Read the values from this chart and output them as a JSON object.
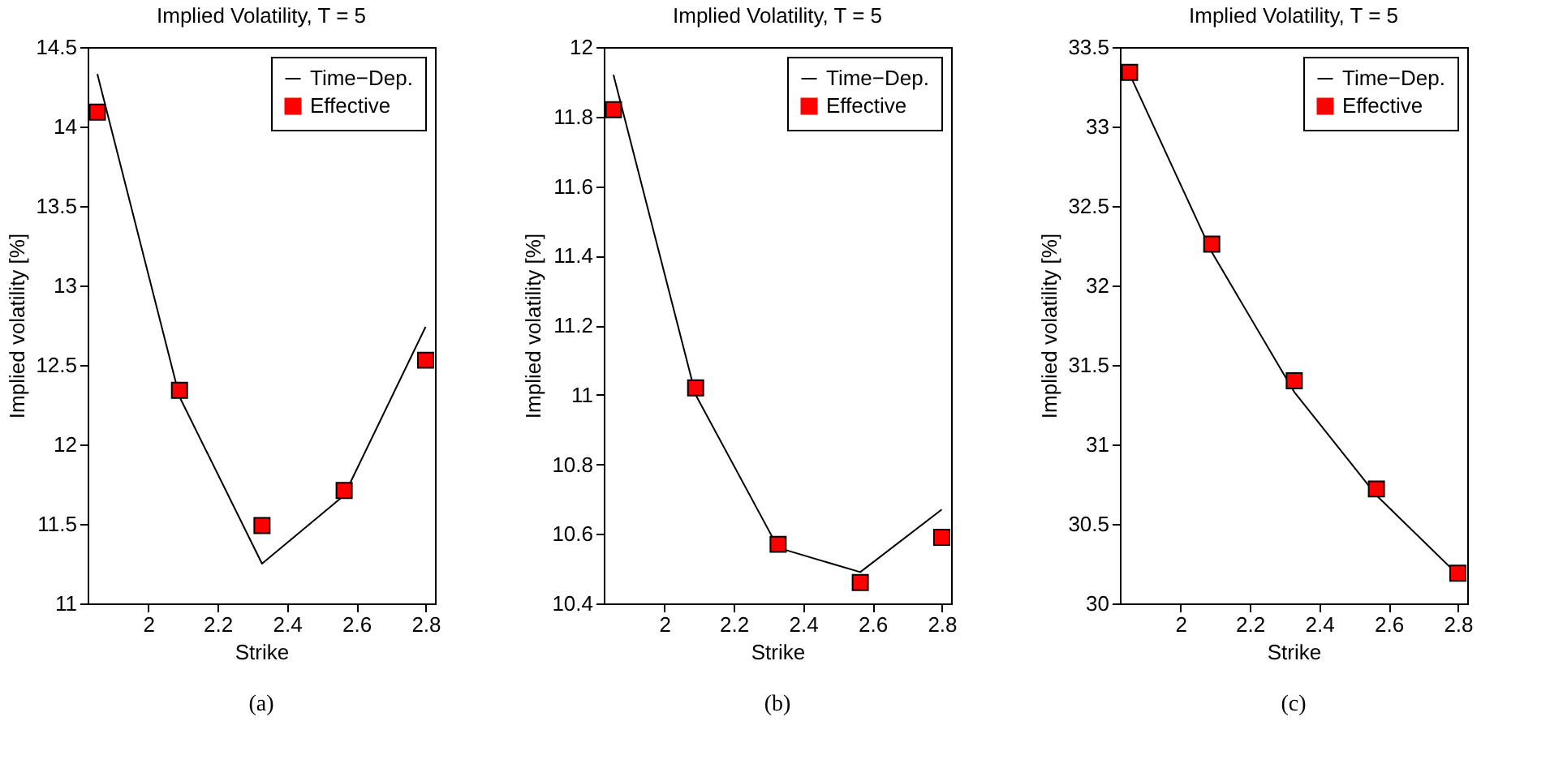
{
  "chart_data": [
    {
      "type": "line",
      "title": "Implied Volatility, T = 5",
      "xlabel": "Strike",
      "ylabel": "Implied volatility [%]",
      "x": [
        1.853,
        2.09,
        2.328,
        2.565,
        2.8
      ],
      "xlim": [
        1.825,
        2.827
      ],
      "xticks": [
        2,
        2.2,
        2.4,
        2.6,
        2.8
      ],
      "ylim": [
        11,
        14.5
      ],
      "yticks": [
        11,
        11.5,
        12,
        12.5,
        13,
        13.5,
        14,
        14.5
      ],
      "legend": "top right",
      "annotations": [
        "(a)"
      ],
      "series": [
        {
          "name": "Time−Dep.",
          "color": "#000000",
          "marker": "none",
          "values": [
            14.33,
            12.3,
            11.25,
            11.68,
            12.74
          ]
        },
        {
          "name": "Effective",
          "type": "scatter",
          "color": "#ff0000",
          "marker": "square",
          "values": [
            14.09,
            12.34,
            11.49,
            11.71,
            12.53
          ]
        }
      ]
    },
    {
      "type": "line",
      "title": "Implied Volatility, T = 5",
      "xlabel": "Strike",
      "ylabel": "Implied volatility [%]",
      "x": [
        1.853,
        2.09,
        2.328,
        2.565,
        2.8
      ],
      "xlim": [
        1.825,
        2.827
      ],
      "xticks": [
        2,
        2.2,
        2.4,
        2.6,
        2.8
      ],
      "ylim": [
        10.4,
        12
      ],
      "yticks": [
        10.4,
        10.6,
        10.8,
        11,
        11.2,
        11.4,
        11.6,
        11.8,
        12
      ],
      "legend": "top right",
      "annotations": [
        "(b)"
      ],
      "series": [
        {
          "name": "Time−Dep.",
          "color": "#000000",
          "marker": "none",
          "values": [
            11.92,
            11.0,
            10.56,
            10.49,
            10.67
          ]
        },
        {
          "name": "Effective",
          "type": "scatter",
          "color": "#ff0000",
          "marker": "square",
          "values": [
            11.82,
            11.02,
            10.57,
            10.46,
            10.59
          ]
        }
      ]
    },
    {
      "type": "line",
      "title": "Implied Volatility, T = 5",
      "xlabel": "Strike",
      "ylabel": "Implied volatility [%]",
      "x": [
        1.853,
        2.09,
        2.328,
        2.565,
        2.8
      ],
      "xlim": [
        1.825,
        2.827
      ],
      "xticks": [
        2,
        2.2,
        2.4,
        2.6,
        2.8
      ],
      "ylim": [
        30,
        33.5
      ],
      "yticks": [
        30,
        30.5,
        31,
        31.5,
        32,
        32.5,
        33,
        33.5
      ],
      "legend": "top right",
      "annotations": [
        "(c)"
      ],
      "series": [
        {
          "name": "Time−Dep.",
          "color": "#000000",
          "marker": "none",
          "values": [
            33.33,
            32.21,
            31.33,
            30.68,
            30.18
          ]
        },
        {
          "name": "Effective",
          "type": "scatter",
          "color": "#ff0000",
          "marker": "square",
          "values": [
            33.34,
            32.26,
            31.4,
            30.72,
            30.19
          ]
        }
      ]
    }
  ]
}
